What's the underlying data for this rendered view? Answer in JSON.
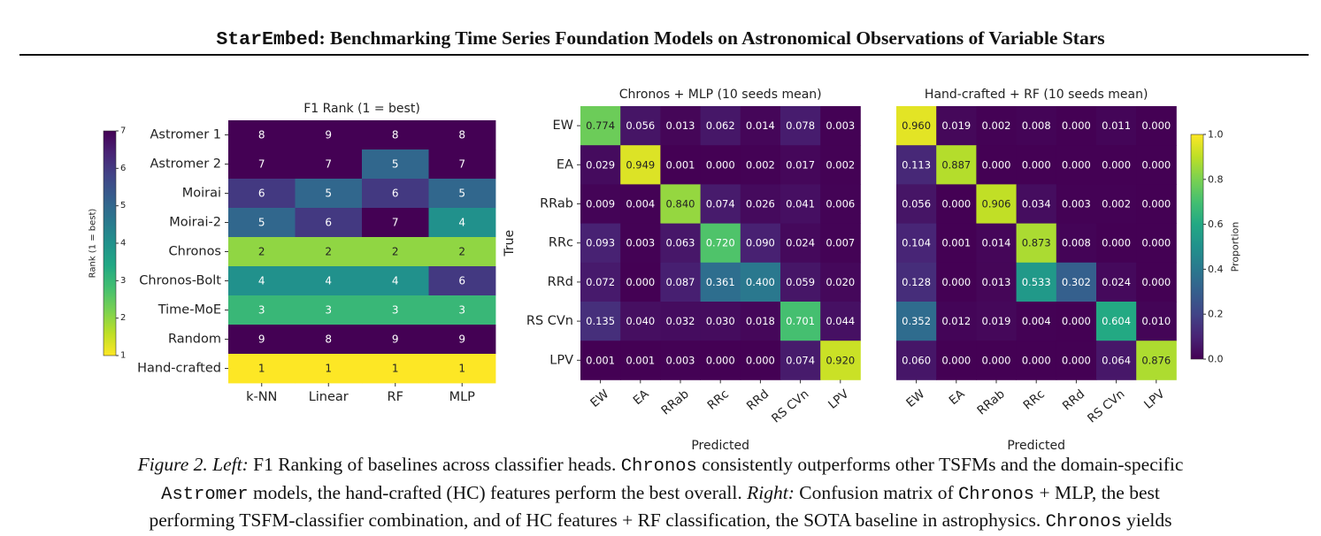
{
  "header": {
    "title_code": "StarEmbed",
    "title_rest": ": Benchmarking Time Series Foundation Models on Astronomical Observations of Variable Stars"
  },
  "caption": {
    "figure_label": "Figure 2.",
    "left_label": "Left:",
    "seg1": " F1 Ranking of baselines across classifier heads. ",
    "code1": "Chronos",
    "seg2": " consistently outperforms other TSFMs and the domain-specific",
    "code2": "Astromer",
    "seg3": " models, the hand-crafted (HC) features perform the best overall. ",
    "right_label": "Right:",
    "seg4": " Confusion matrix of ",
    "code3": "Chronos",
    "seg5": " + MLP, the best",
    "seg6": "performing TSFM-classifier combination, and of HC features + RF classification, the SOTA baseline in astrophysics. ",
    "code4": "Chronos",
    "seg7": " yields"
  },
  "chart_data": [
    {
      "type": "heatmap",
      "title": "F1 Rank (1 = best)",
      "rows": [
        "Astromer 1",
        "Astromer 2",
        "Moirai",
        "Moirai-2",
        "Chronos",
        "Chronos-Bolt",
        "Time-MoE",
        "Random",
        "Hand-crafted"
      ],
      "columns": [
        "k-NN",
        "Linear",
        "RF",
        "MLP"
      ],
      "values": [
        [
          8,
          9,
          8,
          8
        ],
        [
          7,
          7,
          5,
          7
        ],
        [
          6,
          5,
          6,
          5
        ],
        [
          5,
          6,
          7,
          4
        ],
        [
          2,
          2,
          2,
          2
        ],
        [
          4,
          4,
          4,
          6
        ],
        [
          3,
          3,
          3,
          3
        ],
        [
          9,
          8,
          9,
          9
        ],
        [
          1,
          1,
          1,
          1
        ]
      ],
      "colorbar": {
        "label": "Rank (1 = best)",
        "ticks": [
          "1",
          "2",
          "3",
          "4",
          "5",
          "6",
          "7"
        ],
        "range": [
          1,
          7
        ],
        "colormap": "viridis_r",
        "placement": "left"
      }
    },
    {
      "type": "heatmap",
      "title": "Chronos + MLP (10 seeds mean)",
      "xlabel": "Predicted",
      "ylabel": "True",
      "rows": [
        "EW",
        "EA",
        "RRab",
        "RRc",
        "RRd",
        "RS CVn",
        "LPV"
      ],
      "columns": [
        "EW",
        "EA",
        "RRab",
        "RRc",
        "RRd",
        "RS CVn",
        "LPV"
      ],
      "values": [
        [
          "0.774",
          "0.056",
          "0.013",
          "0.062",
          "0.014",
          "0.078",
          "0.003"
        ],
        [
          "0.029",
          "0.949",
          "0.001",
          "0.000",
          "0.002",
          "0.017",
          "0.002"
        ],
        [
          "0.009",
          "0.004",
          "0.840",
          "0.074",
          "0.026",
          "0.041",
          "0.006"
        ],
        [
          "0.093",
          "0.003",
          "0.063",
          "0.720",
          "0.090",
          "0.024",
          "0.007"
        ],
        [
          "0.072",
          "0.000",
          "0.087",
          "0.361",
          "0.400",
          "0.059",
          "0.020"
        ],
        [
          "0.135",
          "0.040",
          "0.032",
          "0.030",
          "0.018",
          "0.701",
          "0.044"
        ],
        [
          "0.001",
          "0.001",
          "0.003",
          "0.000",
          "0.000",
          "0.074",
          "0.920"
        ]
      ],
      "range": [
        0,
        1
      ],
      "colormap": "viridis"
    },
    {
      "type": "heatmap",
      "title": "Hand-crafted + RF (10 seeds mean)",
      "xlabel": "Predicted",
      "rows": [
        "EW",
        "EA",
        "RRab",
        "RRc",
        "RRd",
        "RS CVn",
        "LPV"
      ],
      "columns": [
        "EW",
        "EA",
        "RRab",
        "RRc",
        "RRd",
        "RS CVn",
        "LPV"
      ],
      "values": [
        [
          "0.960",
          "0.019",
          "0.002",
          "0.008",
          "0.000",
          "0.011",
          "0.000"
        ],
        [
          "0.113",
          "0.887",
          "0.000",
          "0.000",
          "0.000",
          "0.000",
          "0.000"
        ],
        [
          "0.056",
          "0.000",
          "0.906",
          "0.034",
          "0.003",
          "0.002",
          "0.000"
        ],
        [
          "0.104",
          "0.001",
          "0.014",
          "0.873",
          "0.008",
          "0.000",
          "0.000"
        ],
        [
          "0.128",
          "0.000",
          "0.013",
          "0.533",
          "0.302",
          "0.024",
          "0.000"
        ],
        [
          "0.352",
          "0.012",
          "0.019",
          "0.004",
          "0.000",
          "0.604",
          "0.010"
        ],
        [
          "0.060",
          "0.000",
          "0.000",
          "0.000",
          "0.000",
          "0.064",
          "0.876"
        ]
      ],
      "range": [
        0,
        1
      ],
      "colormap": "viridis",
      "colorbar": {
        "label": "Proportion",
        "ticks": [
          "0.0",
          "0.2",
          "0.4",
          "0.6",
          "0.8",
          "1.0"
        ],
        "range": [
          0,
          1
        ],
        "placement": "right"
      }
    }
  ]
}
